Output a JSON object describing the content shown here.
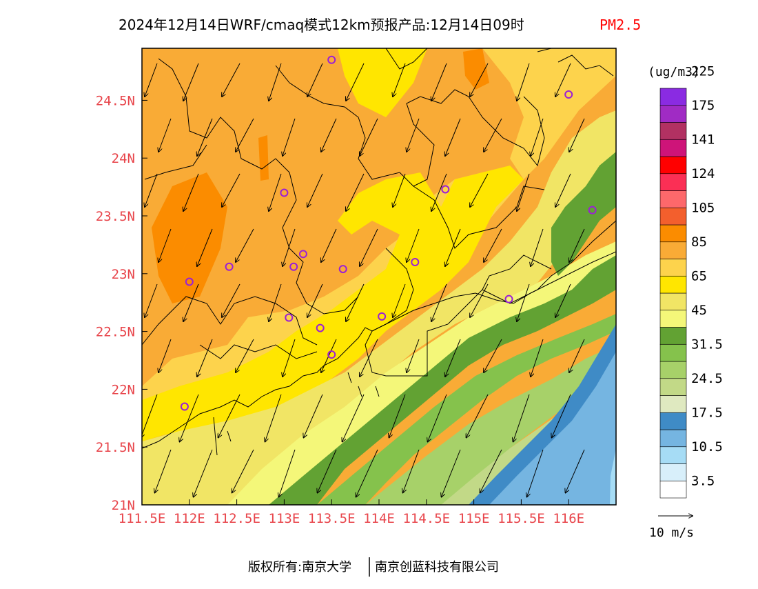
{
  "title": {
    "main": "2024年12月14日WRF/cmaq模式12km预报产品:12月14日09时",
    "variable": "PM2.5",
    "variable_color": "#ff0000"
  },
  "axes": {
    "x_ticks": [
      "111.5E",
      "112E",
      "112.5E",
      "113E",
      "113.5E",
      "114E",
      "114.5E",
      "115E",
      "115.5E",
      "116E"
    ],
    "x_values": [
      111.5,
      112,
      112.5,
      113,
      113.5,
      114,
      114.5,
      115,
      115.5,
      116
    ],
    "y_ticks": [
      "21N",
      "21.5N",
      "22N",
      "22.5N",
      "23N",
      "23.5N",
      "24N",
      "24.5N"
    ],
    "y_values": [
      21,
      21.5,
      22,
      22.5,
      23,
      23.5,
      24,
      24.5
    ],
    "lon_range": [
      111.5,
      116.5
    ],
    "lat_range": [
      21,
      24.95
    ],
    "tick_color": "#e8454b"
  },
  "colorbar": {
    "unit": "(ug/m3)",
    "labels": [
      "3.5",
      "10.5",
      "17.5",
      "24.5",
      "31.5",
      "45",
      "65",
      "85",
      "105",
      "124",
      "141",
      "175",
      "225"
    ],
    "colors": [
      "#ffffff",
      "#d8effa",
      "#a6dcf5",
      "#75b5e1",
      "#3f8bc6",
      "#dfe9c0",
      "#c2d987",
      "#a7d169",
      "#85c24c",
      "#62a233",
      "#f4f779",
      "#f1e565",
      "#ffe600",
      "#fdd34c",
      "#f9ab36",
      "#fb8c00",
      "#f35f2d",
      "#fd686b",
      "#fb2f55",
      "#ff0000",
      "#ce1479",
      "#b23162",
      "#a02bc4",
      "#8a2be2"
    ]
  },
  "wind_reference": {
    "label": "10 m/s"
  },
  "footer": {
    "left": "版权所有:南京大学",
    "right": "南京创蓝科技有限公司"
  },
  "stations": [
    {
      "lon": 113.5,
      "lat": 24.85
    },
    {
      "lon": 116.0,
      "lat": 24.55
    },
    {
      "lon": 113.0,
      "lat": 23.7
    },
    {
      "lon": 114.7,
      "lat": 23.73
    },
    {
      "lon": 116.25,
      "lat": 23.55
    },
    {
      "lon": 113.2,
      "lat": 23.17
    },
    {
      "lon": 112.0,
      "lat": 22.93
    },
    {
      "lon": 112.42,
      "lat": 23.06
    },
    {
      "lon": 113.1,
      "lat": 23.06
    },
    {
      "lon": 113.62,
      "lat": 23.04
    },
    {
      "lon": 114.38,
      "lat": 23.1
    },
    {
      "lon": 115.37,
      "lat": 22.78
    },
    {
      "lon": 113.05,
      "lat": 22.62
    },
    {
      "lon": 114.03,
      "lat": 22.63
    },
    {
      "lon": 113.38,
      "lat": 22.53
    },
    {
      "lon": 113.5,
      "lat": 22.3
    },
    {
      "lon": 111.95,
      "lat": 21.85
    }
  ]
}
